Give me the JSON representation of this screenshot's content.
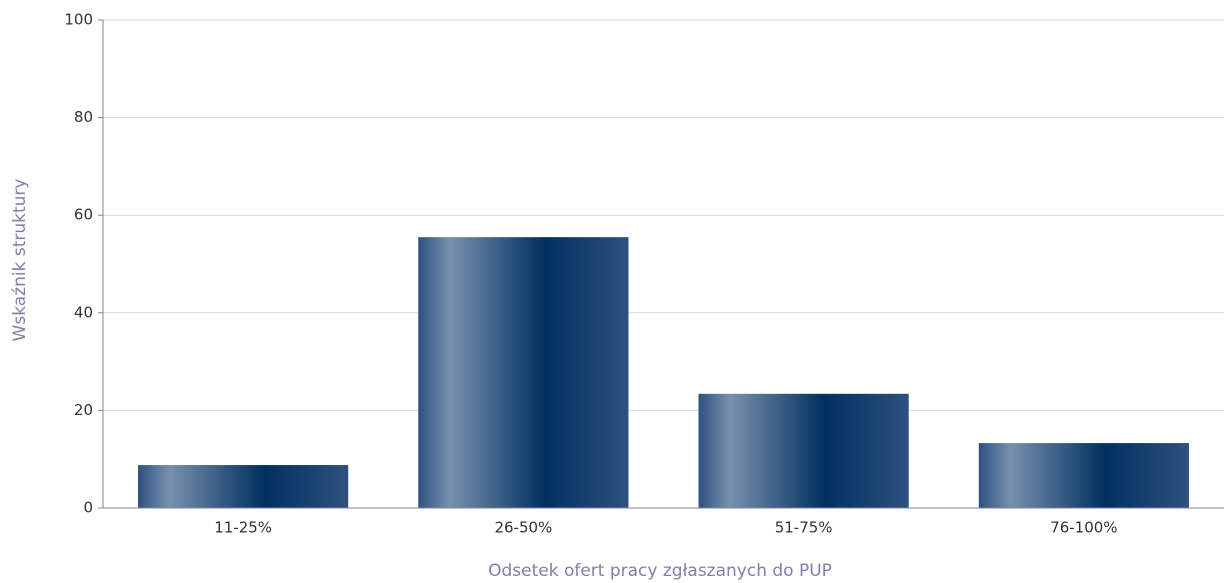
{
  "chart_data": {
    "type": "bar",
    "x_label": "Odsetek ofert pracy zgłaszanych do PUP",
    "y_label": "Wskaźnik struktury",
    "categories": [
      "11-25%",
      "26-50%",
      "51-75%",
      "76-100%"
    ],
    "values": [
      8.8,
      55.5,
      23.4,
      13.3
    ],
    "color": "#00305f",
    "ylim": [
      0,
      100
    ],
    "yticks": [
      0,
      20,
      40,
      60,
      80,
      100
    ],
    "grid": true
  }
}
